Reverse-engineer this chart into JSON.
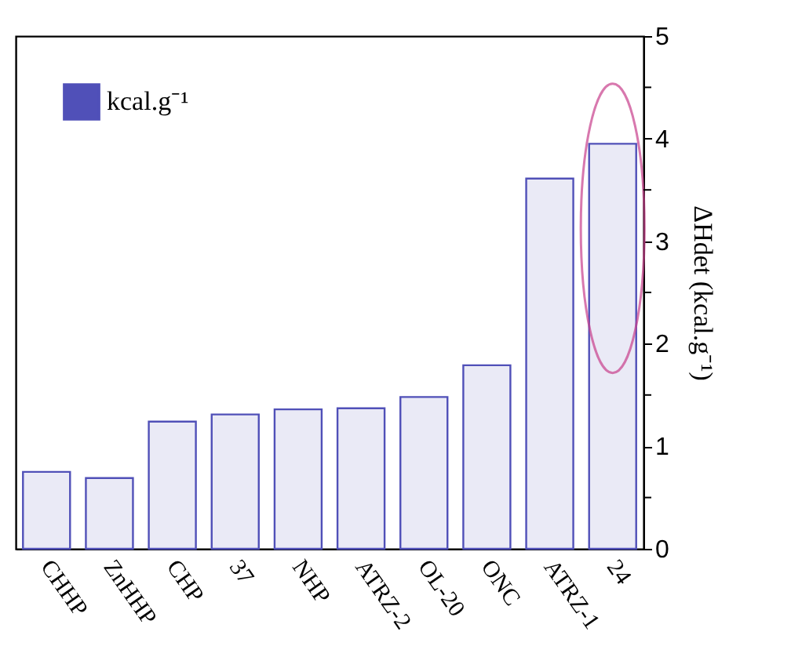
{
  "chart_data": {
    "type": "bar",
    "ylabel": "ΔHdet (kcal.g⁻¹)",
    "categories": [
      "CHHP",
      "ZnHHP",
      "CHP",
      "37",
      "NHP",
      "ATRZ-2",
      "OL-20",
      "ONC",
      "ATRZ-1",
      "24"
    ],
    "series": [
      {
        "name": "kcal.g⁻¹",
        "color": "#5050b8",
        "values": [
          0.75,
          0.69,
          1.24,
          1.31,
          1.36,
          1.37,
          1.48,
          1.79,
          3.61,
          3.95
        ]
      }
    ],
    "ylim": [
      0,
      5
    ],
    "yticks": [
      0,
      {
        "value": 0.5,
        "label": null
      },
      1,
      {
        "value": 1.5,
        "label": null
      },
      2,
      {
        "value": 2.5,
        "label": null
      },
      3,
      {
        "value": 3.5,
        "label": null
      },
      4,
      {
        "value": 4.5,
        "label": null
      },
      5
    ],
    "grid": false,
    "legend": "top left"
  }
}
